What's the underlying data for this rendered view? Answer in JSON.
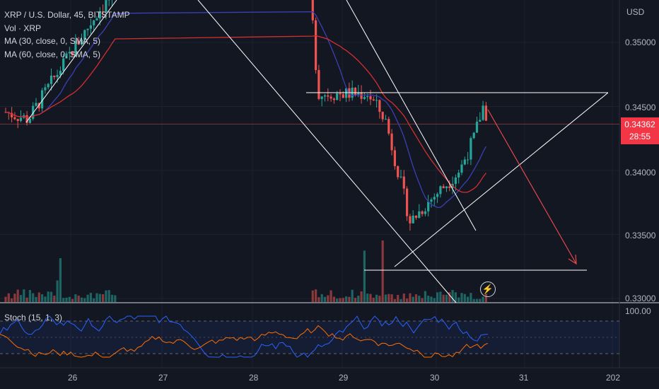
{
  "legend": {
    "symbol": "XRP / U.S. Dollar, 45, BITSTAMP",
    "volume": "Vol · XRP",
    "ma30": "MA (30, close, 0, SMA, 5)",
    "ma60": "MA (60, close, 0, SMA, 5)"
  },
  "oscillator": {
    "label": "Stoch (15, 1, 3)",
    "axis_top": "100.00"
  },
  "price_axis": {
    "currency": "USD",
    "ticks": [
      "0.35000",
      "0.34500",
      "0.34000",
      "0.33500",
      "0.33000"
    ],
    "current_price": "0.34362",
    "countdown": "28:55"
  },
  "time_axis": {
    "ticks": [
      "26",
      "27",
      "28",
      "29",
      "30",
      "31",
      "202"
    ]
  },
  "colors": {
    "background": "#131722",
    "up": "#26a69a",
    "down": "#ef5350",
    "ma30": "#3b3fb5",
    "ma60": "#d32f2f",
    "stoch_k": "#2962ff",
    "stoch_d": "#ff6d00",
    "drawings": "#ffffff",
    "arrow": "#e5484d"
  },
  "icons": {
    "replay": "lightning-icon"
  }
}
